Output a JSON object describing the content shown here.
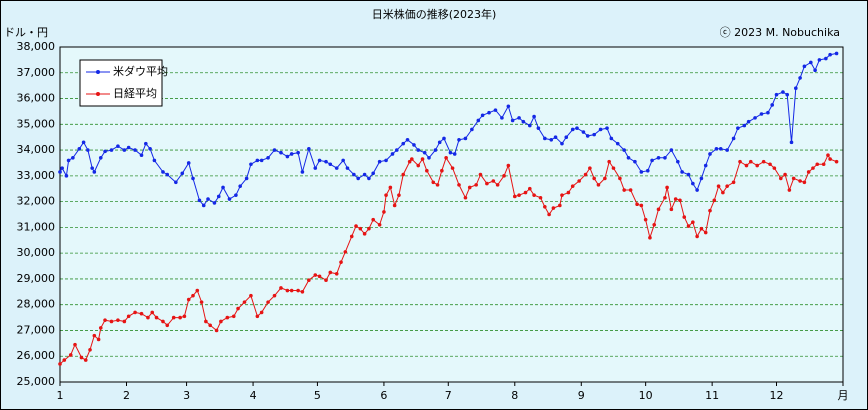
{
  "chart_data": {
    "type": "line",
    "title": "日米株価の推移(2023年)",
    "y_label": "ドル・円",
    "annotation": "ⓒ 2023 M. Nobuchika",
    "xlim": [
      1,
      366
    ],
    "xticks": [
      1,
      {
        "value": 32,
        "label": "2"
      },
      {
        "value": 60,
        "label": "3"
      },
      {
        "value": 91,
        "label": "4"
      },
      {
        "value": 121,
        "label": "5"
      },
      {
        "value": 152,
        "label": "6"
      },
      {
        "value": 182,
        "label": "7"
      },
      {
        "value": 213,
        "label": "8"
      },
      {
        "value": 244,
        "label": "9"
      },
      {
        "value": 274,
        "label": "10"
      },
      {
        "value": 305,
        "label": "11"
      },
      {
        "value": 335,
        "label": "12"
      },
      {
        "value": 366,
        "label": "月"
      }
    ],
    "ylim": [
      25000,
      38000
    ],
    "yticks": [
      {
        "value": 25000,
        "label": "25,000"
      },
      {
        "value": 26000,
        "label": "26,000"
      },
      {
        "value": 27000,
        "label": "27,000"
      },
      {
        "value": 28000,
        "label": "28,000"
      },
      {
        "value": 29000,
        "label": "29,000"
      },
      {
        "value": 30000,
        "label": "30,000"
      },
      {
        "value": 31000,
        "label": "31,000"
      },
      {
        "value": 32000,
        "label": "32,000"
      },
      {
        "value": 33000,
        "label": "33,000"
      },
      {
        "value": 34000,
        "label": "34,000"
      },
      {
        "value": 35000,
        "label": "35,000"
      },
      {
        "value": 36000,
        "label": "36,000"
      },
      {
        "value": 37000,
        "label": "37,000"
      },
      {
        "value": 38000,
        "label": "38,000"
      }
    ],
    "grid": true,
    "legend": "upper left",
    "series": [
      {
        "name": "米ダウ平均",
        "color": "#1428e6",
        "x": [
          1,
          2,
          4,
          5,
          7,
          10,
          12,
          14,
          16,
          17,
          20,
          22,
          25,
          28,
          31,
          33,
          36,
          39,
          41,
          43,
          45,
          49,
          51,
          55,
          58,
          61,
          63,
          66,
          68,
          70,
          73,
          75,
          77,
          80,
          83,
          85,
          88,
          90,
          93,
          95,
          98,
          101,
          104,
          107,
          109,
          112,
          114,
          117,
          120,
          122,
          125,
          127,
          130,
          133,
          135,
          138,
          140,
          143,
          145,
          147,
          150,
          153,
          156,
          158,
          161,
          163,
          166,
          168,
          171,
          173,
          176,
          178,
          180,
          183,
          185,
          187,
          190,
          193,
          196,
          198,
          201,
          204,
          207,
          210,
          212,
          215,
          217,
          220,
          222,
          224,
          227,
          230,
          232,
          235,
          237,
          240,
          242,
          245,
          247,
          250,
          253,
          256,
          258,
          261,
          264,
          266,
          269,
          272,
          275,
          277,
          280,
          283,
          286,
          289,
          291,
          294,
          296,
          298,
          300,
          302,
          304,
          307,
          309,
          312,
          315,
          317,
          320,
          322,
          325,
          328,
          331,
          333,
          335,
          338,
          340,
          342,
          344,
          346,
          348,
          351,
          353,
          355,
          358,
          360,
          363
        ],
        "values": [
          33150,
          33300,
          33000,
          33600,
          33700,
          34050,
          34300,
          34000,
          33300,
          33150,
          33700,
          33950,
          34000,
          34150,
          34000,
          34100,
          34000,
          33800,
          34250,
          34050,
          33600,
          33150,
          33050,
          32750,
          33100,
          33500,
          32900,
          32050,
          31850,
          32100,
          31950,
          32200,
          32550,
          32100,
          32250,
          32600,
          32900,
          33450,
          33600,
          33600,
          33700,
          34000,
          33900,
          33750,
          33850,
          33900,
          33150,
          34050,
          33300,
          33600,
          33550,
          33450,
          33300,
          33600,
          33300,
          33050,
          32900,
          33050,
          32900,
          33100,
          33550,
          33600,
          33850,
          34000,
          34250,
          34400,
          34200,
          34000,
          33900,
          33700,
          34000,
          34300,
          34450,
          33900,
          33850,
          34400,
          34450,
          34800,
          35150,
          35350,
          35450,
          35550,
          35250,
          35700,
          35150,
          35250,
          35100,
          34950,
          35300,
          34850,
          34450,
          34400,
          34500,
          34250,
          34500,
          34800,
          34850,
          34700,
          34550,
          34600,
          34800,
          34850,
          34450,
          34250,
          34000,
          33700,
          33550,
          33150,
          33200,
          33600,
          33700,
          33700,
          34000,
          33550,
          33150,
          33050,
          32700,
          32450,
          32900,
          33400,
          33850,
          34050,
          34050,
          34000,
          34450,
          34850,
          34950,
          35100,
          35250,
          35400,
          35450,
          35750,
          36150,
          36250,
          36150,
          34300,
          36400,
          36800,
          37250,
          37400,
          37100,
          37500,
          37550,
          37700,
          37750
        ]
      },
      {
        "name": "日経平均",
        "color": "#e61414",
        "x": [
          1,
          3,
          6,
          8,
          11,
          13,
          15,
          17,
          19,
          20,
          22,
          25,
          28,
          31,
          33,
          36,
          39,
          42,
          44,
          46,
          49,
          51,
          54,
          57,
          59,
          61,
          63,
          65,
          67,
          69,
          71,
          74,
          76,
          79,
          82,
          84,
          87,
          90,
          93,
          95,
          98,
          101,
          104,
          107,
          109,
          112,
          114,
          117,
          120,
          122,
          125,
          127,
          130,
          132,
          134,
          137,
          139,
          141,
          143,
          145,
          147,
          150,
          152,
          153,
          155,
          157,
          159,
          161,
          164,
          165,
          168,
          170,
          172,
          175,
          177,
          179,
          181,
          184,
          187,
          190,
          192,
          195,
          197,
          200,
          203,
          205,
          208,
          210,
          213,
          215,
          218,
          220,
          222,
          225,
          227,
          229,
          231,
          234,
          235,
          238,
          240,
          243,
          246,
          248,
          250,
          252,
          255,
          257,
          259,
          262,
          264,
          267,
          270,
          272,
          274,
          276,
          278,
          280,
          283,
          284,
          286,
          288,
          290,
          292,
          294,
          296,
          298,
          300,
          302,
          304,
          306,
          308,
          310,
          312,
          315,
          318,
          321,
          323,
          326,
          329,
          332,
          334,
          337,
          339,
          341,
          343,
          346,
          348,
          350,
          352,
          354,
          357,
          359,
          360,
          363
        ],
        "values": [
          25700,
          25850,
          26050,
          26450,
          25950,
          25850,
          26250,
          26800,
          26650,
          27100,
          27400,
          27350,
          27400,
          27350,
          27550,
          27700,
          27650,
          27500,
          27700,
          27500,
          27350,
          27200,
          27500,
          27500,
          27550,
          28200,
          28350,
          28550,
          28100,
          27350,
          27200,
          27000,
          27350,
          27500,
          27550,
          27850,
          28100,
          28350,
          27550,
          27700,
          28100,
          28350,
          28650,
          28550,
          28550,
          28550,
          28500,
          28950,
          29150,
          29100,
          28950,
          29250,
          29200,
          29650,
          30050,
          30650,
          31050,
          30950,
          30750,
          30950,
          31300,
          31100,
          31600,
          32250,
          32550,
          31850,
          32250,
          33050,
          33550,
          33650,
          33400,
          33650,
          33200,
          32750,
          32650,
          33200,
          33700,
          33300,
          32650,
          32150,
          32550,
          32650,
          33050,
          32700,
          32800,
          32650,
          33000,
          33400,
          32200,
          32250,
          32350,
          32500,
          32250,
          32150,
          31800,
          31500,
          31750,
          31850,
          32250,
          32350,
          32600,
          32800,
          33050,
          33300,
          32900,
          32650,
          32900,
          33550,
          33300,
          32900,
          32450,
          32450,
          31900,
          31850,
          31300,
          30600,
          31100,
          31700,
          32150,
          32550,
          31700,
          32100,
          32050,
          31400,
          31050,
          31200,
          30650,
          30950,
          30800,
          31650,
          32050,
          32600,
          32350,
          32600,
          32750,
          33550,
          33400,
          33550,
          33400,
          33550,
          33450,
          33300,
          32900,
          33050,
          32450,
          32900,
          32800,
          32750,
          33150,
          33300,
          33450,
          33450,
          33800,
          33650,
          33550
        ]
      }
    ]
  }
}
